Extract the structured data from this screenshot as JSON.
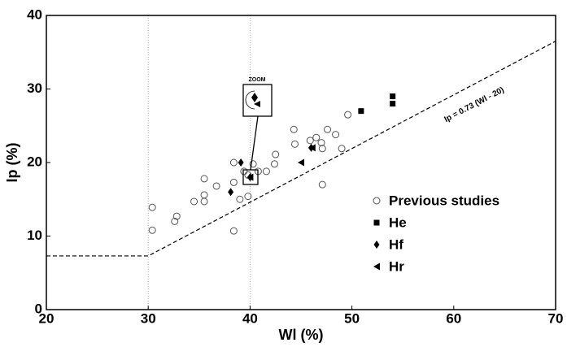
{
  "chart_data": {
    "type": "scatter",
    "xlabel": "Wl (%)",
    "ylabel": "Ip (%)",
    "xlim": [
      20,
      70
    ],
    "ylim": [
      0,
      40
    ],
    "xticks": [
      20,
      30,
      40,
      50,
      60,
      70
    ],
    "yticks": [
      0,
      10,
      20,
      30,
      40
    ],
    "xgrid_at": [
      30,
      40
    ],
    "legend_position": "lower right",
    "annotation": "Ip = 0.73 (Wl - 20)",
    "zoom_label": "ZOOM",
    "reference_line": {
      "x": [
        20,
        30,
        70
      ],
      "values": [
        7.3,
        7.3,
        36.5
      ],
      "color": "#000000",
      "style": "dashed"
    },
    "series": [
      {
        "name": "Previous studies",
        "marker": "circle",
        "color": "#000000",
        "x": [
          30.4,
          30.4,
          32.8,
          32.6,
          34.5,
          35.5,
          35.5,
          35.5,
          36.7,
          38.4,
          38.4,
          38.4,
          39.0,
          39.4,
          39.8,
          39.8,
          40.3,
          40.8,
          41.6,
          42.4,
          42.5,
          44.3,
          44.4,
          45.9,
          46.5,
          47.0,
          47.1,
          47.6,
          48.4,
          49.0,
          49.6,
          47.1
        ],
        "values": [
          13.9,
          10.8,
          12.7,
          12.0,
          14.7,
          14.7,
          17.8,
          15.6,
          16.8,
          10.7,
          20.0,
          17.3,
          15.0,
          18.8,
          15.4,
          18.3,
          19.8,
          18.8,
          18.8,
          19.8,
          21.1,
          24.5,
          22.5,
          23.0,
          23.4,
          22.7,
          21.9,
          24.5,
          23.8,
          21.9,
          26.5,
          17.0
        ]
      },
      {
        "name": "He",
        "marker": "square",
        "color": "#000000",
        "x": [
          50.9,
          54.0,
          54.0
        ],
        "values": [
          27.0,
          29.0,
          28.0
        ]
      },
      {
        "name": "Hf",
        "marker": "diamond",
        "color": "#000000",
        "x": [
          38.1,
          39.1,
          40.0,
          46.0
        ],
        "values": [
          16.0,
          20.0,
          18.0,
          22.0
        ]
      },
      {
        "name": "Hr",
        "marker": "triangle-left",
        "color": "#000000",
        "x": [
          45.0,
          46.1,
          40.0
        ],
        "values": [
          20.0,
          22.0,
          18.0
        ]
      }
    ]
  }
}
